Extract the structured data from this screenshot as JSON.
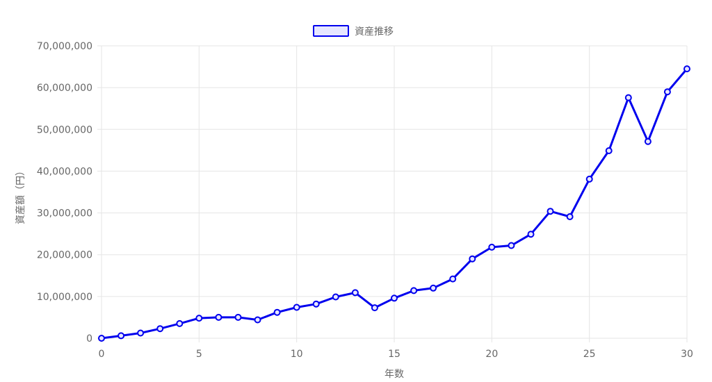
{
  "chart_data": {
    "type": "line",
    "legend": {
      "label": "資産推移",
      "placement": "top-center"
    },
    "xlabel": "年数",
    "ylabel": "資産額（円）",
    "xlim": [
      0,
      30
    ],
    "ylim": [
      0,
      70000000
    ],
    "x_ticks": [
      "0",
      "5",
      "10",
      "15",
      "20",
      "25",
      "30"
    ],
    "y_ticks": [
      "0",
      "10,000,000",
      "20,000,000",
      "30,000,000",
      "40,000,000",
      "50,000,000",
      "60,000,000",
      "70,000,000"
    ],
    "grid": true,
    "colors": {
      "line": "#0000ee",
      "legend_fill": "#e6e6ff"
    },
    "series": [
      {
        "name": "資産推移",
        "x": [
          0,
          1,
          2,
          3,
          4,
          5,
          6,
          7,
          8,
          9,
          10,
          11,
          12,
          13,
          14,
          15,
          16,
          17,
          18,
          19,
          20,
          21,
          22,
          23,
          24,
          25,
          26,
          27,
          28,
          29,
          30
        ],
        "values": [
          0,
          600000,
          1250000,
          2300000,
          3500000,
          4800000,
          5000000,
          5000000,
          4400000,
          6200000,
          7400000,
          8200000,
          9900000,
          10900000,
          7300000,
          9600000,
          11400000,
          12000000,
          14200000,
          19000000,
          21800000,
          22200000,
          24900000,
          30400000,
          29100000,
          38100000,
          44900000,
          57600000,
          47100000,
          59000000,
          64500000
        ]
      }
    ]
  }
}
